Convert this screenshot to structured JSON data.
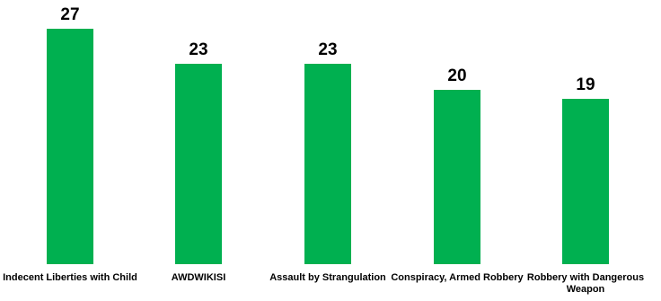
{
  "chart_data": {
    "type": "bar",
    "categories": [
      "Indecent Liberties with Child",
      "AWDWIKISI",
      "Assault by Strangulation",
      "Conspiracy, Armed Robbery",
      "Robbery with Dangerous Weapon"
    ],
    "values": [
      27,
      23,
      23,
      20,
      19
    ],
    "data_labels": [
      "27",
      "23",
      "23",
      "20",
      "19"
    ],
    "title": "",
    "xlabel": "",
    "ylabel": "",
    "ylim": [
      0,
      27
    ],
    "grid": false,
    "legend": "none",
    "bar_color": "#00B050"
  }
}
